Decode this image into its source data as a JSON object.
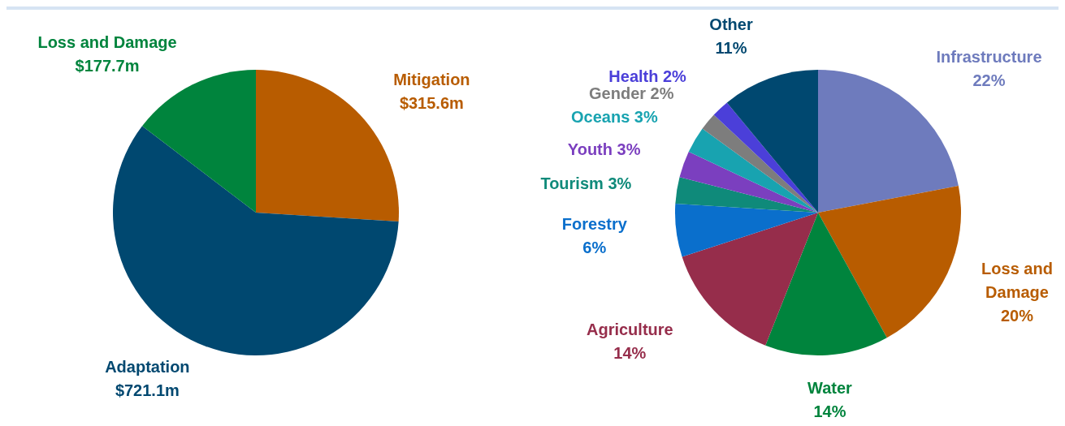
{
  "chart_data": [
    {
      "type": "pie",
      "categories": [
        "Mitigation",
        "Adaptation",
        "Loss and Damage"
      ],
      "values": [
        315.6,
        721.1,
        177.7
      ],
      "colors": [
        "#b85c00",
        "#004870",
        "#00843d"
      ],
      "value_labels": [
        "$315.6m",
        "$721.1m",
        "$177.7m"
      ],
      "legend": false
    },
    {
      "type": "pie",
      "categories": [
        "Infrastructure",
        "Loss and Damage",
        "Water",
        "Agriculture",
        "Forestry",
        "Tourism",
        "Youth",
        "Oceans",
        "Gender",
        "Health",
        "Other"
      ],
      "values": [
        22,
        20,
        14,
        14,
        6,
        3,
        3,
        3,
        2,
        2,
        11
      ],
      "colors": [
        "#6e7bbd",
        "#b85c00",
        "#00843d",
        "#962d4b",
        "#0a6fcc",
        "#0f8a7a",
        "#7b3fbf",
        "#18a3b0",
        "#7d7d7d",
        "#4b3fd9",
        "#004870"
      ],
      "value_labels": [
        "22%",
        "20%",
        "14%",
        "14%",
        "6%",
        "3%",
        "3%",
        "3%",
        "2%",
        "2%",
        "11%"
      ],
      "legend": false
    }
  ]
}
